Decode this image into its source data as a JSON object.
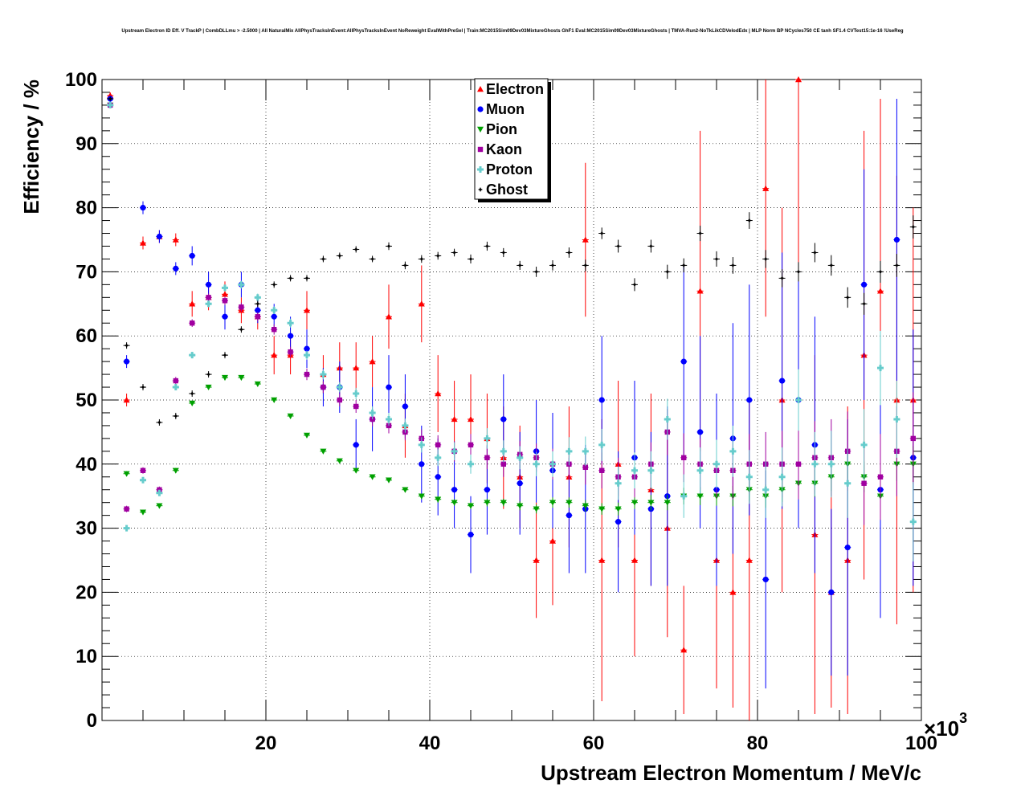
{
  "chart_data": {
    "type": "scatter",
    "title": "Upstream Electron ID Eff. V TrackP | CombDLLmu > -2.5000 | All NaturalMix AllPhysTracksInEvent:AllPhysTracksInEvent NoReweight EvalWithPreSel | Train:MC2015Sim09Dev03MixtureGhosts GhF1 Eval:MC2015Sim09Dev03MixtureGhosts | TMVA-Run2-NoTkLikCDVelodEdx | MLP Norm BP NCycles750 CE tanh SF1.4 CVTest15:1e-16 !UseReg",
    "xlabel": "Upstream Electron Momentum / MeV/c",
    "ylabel": "Efficiency / %",
    "x_multiplier": "×10",
    "x_multiplier_exp": "3",
    "xlim": [
      0,
      100
    ],
    "ylim": [
      0,
      100
    ],
    "x_ticks": [
      20,
      40,
      60,
      80,
      100
    ],
    "y_ticks": [
      0,
      10,
      20,
      30,
      40,
      50,
      60,
      70,
      80,
      90,
      100
    ],
    "grid": true,
    "legend_position": "top-center",
    "x": [
      1,
      3,
      5,
      7,
      9,
      11,
      13,
      15,
      17,
      19,
      21,
      23,
      25,
      27,
      29,
      31,
      33,
      35,
      37,
      39,
      41,
      43,
      45,
      47,
      49,
      51,
      53,
      55,
      57,
      59,
      61,
      63,
      65,
      67,
      69,
      71,
      73,
      75,
      77,
      79,
      81,
      83,
      85,
      87,
      89,
      91,
      93,
      95,
      97,
      99
    ],
    "series": [
      {
        "name": "Electron",
        "color": "#ff0000",
        "marker": "triangle-up",
        "values": [
          97.5,
          50,
          74.5,
          75.5,
          75,
          65,
          66,
          66.5,
          64,
          63,
          57,
          57,
          64,
          54,
          55,
          55,
          56,
          63,
          46,
          65,
          51,
          47,
          47,
          44,
          41,
          38,
          25,
          28,
          38,
          75,
          25,
          40,
          25,
          36,
          30,
          11,
          67,
          25,
          20,
          25,
          83,
          50,
          100,
          29,
          20,
          25,
          57,
          67,
          50,
          50
        ],
        "errors": [
          0.5,
          1,
          1,
          1,
          1,
          2,
          2,
          2,
          2,
          2,
          3,
          3,
          3,
          3,
          4,
          4,
          4,
          5,
          5,
          6,
          6,
          6,
          7,
          7,
          8,
          8,
          9,
          10,
          11,
          12,
          22,
          13,
          15,
          15,
          17,
          10,
          25,
          20,
          18,
          25,
          20,
          30,
          30,
          28,
          18,
          24,
          35,
          30,
          35,
          30
        ]
      },
      {
        "name": "Muon",
        "color": "#0000ff",
        "marker": "circle",
        "values": [
          97,
          56,
          80,
          75.5,
          70.5,
          72.5,
          68,
          63,
          68,
          64,
          63,
          60,
          58,
          52,
          52,
          43,
          47,
          52,
          49,
          40,
          38,
          36,
          29,
          36,
          47,
          37,
          42,
          39,
          32,
          33,
          50,
          31,
          41,
          33,
          35,
          56,
          45,
          36,
          44,
          50,
          22,
          53,
          50,
          43,
          20,
          27,
          68,
          36,
          75,
          41
        ],
        "errors": [
          0.5,
          1,
          1,
          1,
          1,
          1.5,
          2,
          2,
          2,
          2,
          2,
          3,
          3,
          3,
          4,
          4,
          5,
          5,
          5,
          6,
          6,
          6,
          6,
          7,
          7,
          8,
          8,
          9,
          9,
          10,
          10,
          11,
          12,
          12,
          14,
          15,
          15,
          15,
          18,
          18,
          17,
          20,
          20,
          20,
          13,
          20,
          18,
          20,
          22,
          20
        ]
      },
      {
        "name": "Pion",
        "color": "#00a000",
        "marker": "triangle-down",
        "values": [
          96,
          38.5,
          32.5,
          33.5,
          39,
          49.5,
          52,
          53.5,
          53.5,
          52.5,
          50,
          47.5,
          44.5,
          42,
          40.5,
          39,
          38,
          37.5,
          36,
          35,
          34.5,
          34,
          33.5,
          34,
          34,
          33.5,
          33,
          34,
          34,
          33.5,
          33,
          33,
          34,
          34,
          34,
          35,
          35,
          35,
          35,
          36,
          35,
          36,
          37,
          37,
          38,
          40,
          38,
          35,
          40,
          40
        ],
        "errors": [
          0.3,
          0.4,
          0.4,
          0.4,
          0.4,
          0.3,
          0.3,
          0.3,
          0.3,
          0.3,
          0.3,
          0.3,
          0.3,
          0.3,
          0.3,
          0.3,
          0.4,
          0.4,
          0.4,
          0.4,
          0.5,
          0.5,
          0.5,
          0.6,
          0.6,
          0.7,
          0.7,
          0.8,
          0.8,
          0.9,
          0.9,
          1,
          1,
          1.2,
          1.2,
          1.3,
          1.4,
          1.5,
          1.6,
          1.7,
          1.8,
          1.9,
          2,
          2.1,
          2.2,
          2.3,
          2.4,
          2.5,
          2.6,
          2.8
        ]
      },
      {
        "name": "Kaon",
        "color": "#a000a0",
        "marker": "square",
        "values": [
          96,
          33,
          39,
          36,
          53,
          62,
          66,
          65.5,
          64.5,
          63,
          61,
          57.5,
          54,
          52,
          50,
          49,
          47,
          46,
          45,
          44,
          43,
          42,
          43,
          41,
          40,
          41.5,
          41,
          40,
          40,
          39.5,
          39,
          38,
          38,
          40,
          45,
          41,
          40,
          39,
          39,
          40,
          40,
          40,
          40,
          41,
          41,
          42,
          37,
          38,
          42,
          44
        ],
        "errors": [
          0.3,
          0.5,
          0.5,
          0.5,
          0.6,
          0.6,
          0.6,
          0.7,
          0.7,
          0.7,
          0.8,
          0.8,
          0.9,
          0.9,
          1,
          1,
          1.1,
          1.2,
          1.3,
          1.4,
          1.5,
          1.6,
          1.7,
          1.8,
          2,
          2.1,
          2.2,
          2.4,
          2.5,
          2.7,
          2.8,
          3,
          3.2,
          3.4,
          3.6,
          3.8,
          4,
          4.2,
          4.5,
          4.7,
          5,
          5.2,
          5.5,
          5.7,
          6,
          6.2,
          6.5,
          6.7,
          7,
          7.2
        ]
      },
      {
        "name": "Proton",
        "color": "#66cccc",
        "marker": "cross",
        "values": [
          96,
          30,
          37.5,
          35.5,
          52,
          57,
          65,
          67.5,
          68,
          66,
          64,
          62,
          57,
          54,
          52,
          51,
          48,
          47,
          46,
          43,
          41,
          42,
          40,
          44,
          42,
          41,
          40,
          40,
          42,
          42,
          43,
          37,
          39,
          39,
          47,
          35,
          39,
          40,
          42,
          38,
          36,
          38,
          50,
          40,
          40,
          37,
          43,
          55,
          47,
          31
        ],
        "errors": [
          0.3,
          0.4,
          0.4,
          0.4,
          0.5,
          0.5,
          0.5,
          0.5,
          0.6,
          0.6,
          0.6,
          0.7,
          0.7,
          0.8,
          0.8,
          0.9,
          1,
          1,
          1.1,
          1.2,
          1.3,
          1.4,
          1.5,
          1.6,
          1.7,
          1.8,
          1.9,
          2,
          2.2,
          2.3,
          2.5,
          2.6,
          2.8,
          3,
          3.2,
          3.4,
          3.6,
          3.8,
          4,
          4.2,
          4.4,
          4.6,
          4.8,
          5,
          5.2,
          5.4,
          5.6,
          5.8,
          6,
          6.2
        ]
      },
      {
        "name": "Ghost",
        "color": "#000000",
        "marker": "star",
        "values": [
          97,
          58.5,
          52,
          46.5,
          47.5,
          51,
          54,
          57,
          61,
          65,
          68,
          69,
          69,
          72,
          72.5,
          73.5,
          72,
          74,
          71,
          72,
          72.5,
          73,
          72,
          74,
          73,
          71,
          70,
          71,
          73,
          71,
          76,
          74,
          68,
          74,
          70,
          71,
          76,
          72,
          71,
          78,
          72,
          69,
          70,
          73,
          71,
          66,
          65,
          70,
          71,
          77
        ],
        "errors": [
          0.2,
          0.5,
          0.5,
          0.5,
          0.5,
          0.5,
          0.5,
          0.5,
          0.5,
          0.5,
          0.5,
          0.5,
          0.5,
          0.5,
          0.5,
          0.5,
          0.5,
          0.6,
          0.6,
          0.6,
          0.6,
          0.6,
          0.7,
          0.7,
          0.7,
          0.7,
          0.8,
          0.8,
          0.8,
          0.9,
          0.9,
          1,
          1,
          1,
          1.1,
          1.1,
          1.2,
          1.2,
          1.3,
          1.3,
          1.4,
          1.4,
          1.5,
          1.5,
          1.6,
          1.6,
          1.7,
          1.7,
          1.8,
          1.8
        ]
      }
    ]
  }
}
